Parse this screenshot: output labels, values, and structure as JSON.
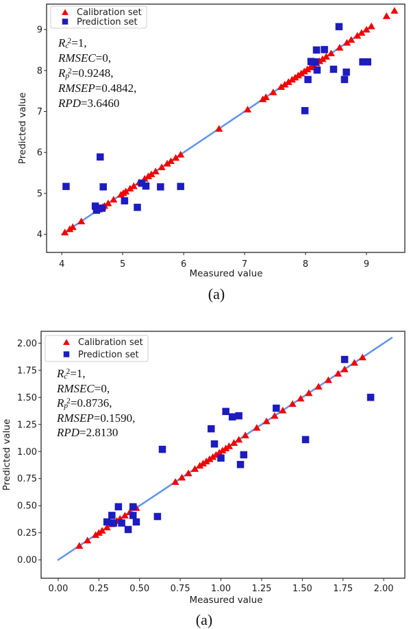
{
  "colors": {
    "calibration": "#f40000",
    "prediction": "#1c1cc0",
    "identity_line": "#6495ED",
    "axis": "#262626",
    "text": "#1a1a1a",
    "legend_border": "#cccccc"
  },
  "figures": [
    {
      "caption": "(a)",
      "legend": {
        "items": [
          {
            "label": "Calibration set",
            "marker": "triangle"
          },
          {
            "label": "Prediction set",
            "marker": "square"
          }
        ]
      },
      "annotation": {
        "lines": [
          [
            {
              "t": "R",
              "s": "v"
            },
            {
              "t": "c",
              "s": "b"
            },
            {
              "t": "2",
              "s": "p"
            },
            {
              "t": "=1,",
              "s": "n"
            }
          ],
          [
            {
              "t": "RMSEC",
              "s": "v"
            },
            {
              "t": "=0,",
              "s": "n"
            }
          ],
          [
            {
              "t": "R",
              "s": "v"
            },
            {
              "t": "p",
              "s": "b"
            },
            {
              "t": "2",
              "s": "p"
            },
            {
              "t": "=0.9248,",
              "s": "n"
            }
          ],
          [
            {
              "t": "RMSEP",
              "s": "v"
            },
            {
              "t": "=0.4842,",
              "s": "n"
            }
          ],
          [
            {
              "t": "RPD",
              "s": "v"
            },
            {
              "t": "=3.6460",
              "s": "n"
            }
          ]
        ]
      }
    },
    {
      "caption": "(a)",
      "legend": {
        "items": [
          {
            "label": "Calibration set",
            "marker": "triangle"
          },
          {
            "label": "Prediction set",
            "marker": "square"
          }
        ]
      },
      "annotation": {
        "lines": [
          [
            {
              "t": "R",
              "s": "v"
            },
            {
              "t": "c",
              "s": "b"
            },
            {
              "t": "2",
              "s": "p"
            },
            {
              "t": "=1,",
              "s": "n"
            }
          ],
          [
            {
              "t": "RMSEC",
              "s": "v"
            },
            {
              "t": "=0,",
              "s": "n"
            }
          ],
          [
            {
              "t": "R",
              "s": "v"
            },
            {
              "t": "p",
              "s": "b"
            },
            {
              "t": "2",
              "s": "p"
            },
            {
              "t": "=0.8736,",
              "s": "n"
            }
          ],
          [
            {
              "t": "RMSEP",
              "s": "v"
            },
            {
              "t": "=0.1590,",
              "s": "n"
            }
          ],
          [
            {
              "t": "RPD",
              "s": "v"
            },
            {
              "t": "=2.8130",
              "s": "n"
            }
          ]
        ]
      }
    }
  ],
  "chart_data": [
    {
      "type": "scatter",
      "xlabel": "Measured value",
      "ylabel": "Predicted value",
      "xlim": [
        3.75,
        9.63
      ],
      "ylim": [
        3.56,
        9.62
      ],
      "xticks": [
        4,
        5,
        6,
        7,
        8,
        9
      ],
      "yticks": [
        4,
        5,
        6,
        7,
        8,
        9
      ],
      "xtick_labels": [
        "4",
        "5",
        "6",
        "7",
        "8",
        "9"
      ],
      "ytick_labels": [
        "4",
        "5",
        "6",
        "7",
        "8",
        "9"
      ],
      "grid": false,
      "legend_position": "upper left",
      "annotation_text": [
        "Rc2=1,",
        "RMSEC=0,",
        "Rp2=0.9248,",
        "RMSEP=0.4842,",
        "RPD=3.6460"
      ],
      "identity_line": {
        "x1": 4.01,
        "y1": 4.01,
        "x2": 9.1,
        "y2": 9.1
      },
      "series": [
        {
          "name": "Calibration set",
          "marker": "triangle",
          "points": [
            [
              4.05,
              4.05
            ],
            [
              4.13,
              4.13
            ],
            [
              4.18,
              4.18
            ],
            [
              4.32,
              4.32
            ],
            [
              4.61,
              4.61
            ],
            [
              4.67,
              4.67
            ],
            [
              4.7,
              4.7
            ],
            [
              4.76,
              4.76
            ],
            [
              4.85,
              4.85
            ],
            [
              4.97,
              4.97
            ],
            [
              5.01,
              5.01
            ],
            [
              5.05,
              5.05
            ],
            [
              5.12,
              5.12
            ],
            [
              5.18,
              5.18
            ],
            [
              5.27,
              5.27
            ],
            [
              5.36,
              5.36
            ],
            [
              5.42,
              5.42
            ],
            [
              5.47,
              5.47
            ],
            [
              5.54,
              5.54
            ],
            [
              5.64,
              5.64
            ],
            [
              5.73,
              5.73
            ],
            [
              5.79,
              5.79
            ],
            [
              5.87,
              5.87
            ],
            [
              5.95,
              5.95
            ],
            [
              6.58,
              6.58
            ],
            [
              7.05,
              7.05
            ],
            [
              7.3,
              7.3
            ],
            [
              7.35,
              7.35
            ],
            [
              7.47,
              7.47
            ],
            [
              7.6,
              7.6
            ],
            [
              7.66,
              7.66
            ],
            [
              7.72,
              7.72
            ],
            [
              7.78,
              7.78
            ],
            [
              7.83,
              7.83
            ],
            [
              7.88,
              7.88
            ],
            [
              7.93,
              7.93
            ],
            [
              7.98,
              7.98
            ],
            [
              8.03,
              8.03
            ],
            [
              8.08,
              8.08
            ],
            [
              8.13,
              8.13
            ],
            [
              8.18,
              8.18
            ],
            [
              8.23,
              8.23
            ],
            [
              8.28,
              8.28
            ],
            [
              8.34,
              8.34
            ],
            [
              8.42,
              8.42
            ],
            [
              8.56,
              8.56
            ],
            [
              8.68,
              8.68
            ],
            [
              8.75,
              8.75
            ],
            [
              8.85,
              8.85
            ],
            [
              8.92,
              8.92
            ],
            [
              9.0,
              9.0
            ],
            [
              9.08,
              9.08
            ],
            [
              9.33,
              9.33
            ],
            [
              9.46,
              9.46
            ]
          ]
        },
        {
          "name": "Prediction set",
          "marker": "square",
          "points": [
            [
              4.07,
              5.17
            ],
            [
              4.55,
              4.69
            ],
            [
              4.57,
              4.59
            ],
            [
              4.63,
              5.89
            ],
            [
              4.66,
              4.64
            ],
            [
              4.68,
              5.16
            ],
            [
              5.03,
              4.82
            ],
            [
              5.24,
              4.66
            ],
            [
              5.31,
              5.25
            ],
            [
              5.38,
              5.18
            ],
            [
              5.62,
              5.16
            ],
            [
              5.95,
              5.17
            ],
            [
              7.99,
              7.02
            ],
            [
              8.04,
              7.78
            ],
            [
              8.09,
              8.22
            ],
            [
              8.16,
              8.21
            ],
            [
              8.18,
              8.5
            ],
            [
              8.19,
              8.01
            ],
            [
              8.31,
              8.51
            ],
            [
              8.46,
              8.03
            ],
            [
              8.55,
              9.07
            ],
            [
              8.64,
              7.78
            ],
            [
              8.67,
              7.96
            ],
            [
              8.94,
              8.21
            ],
            [
              9.02,
              8.21
            ]
          ]
        }
      ]
    },
    {
      "type": "scatter",
      "xlabel": "Measured value",
      "ylabel": "Predicted value",
      "xlim": [
        -0.105,
        2.13
      ],
      "ylim": [
        -0.17,
        2.11
      ],
      "xticks": [
        0,
        0.25,
        0.5,
        0.75,
        1,
        1.25,
        1.5,
        1.75,
        2
      ],
      "yticks": [
        0,
        0.25,
        0.5,
        0.75,
        1,
        1.25,
        1.5,
        1.75,
        2
      ],
      "xtick_labels": [
        "0.00",
        "0.25",
        "0.50",
        "0.75",
        "1.00",
        "1.25",
        "1.50",
        "1.75",
        "2.00"
      ],
      "ytick_labels": [
        "0.00",
        "0.25",
        "0.50",
        "0.75",
        "1.00",
        "1.25",
        "1.50",
        "1.75",
        "2.00"
      ],
      "grid": false,
      "legend_position": "upper left",
      "annotation_text": [
        "Rc2=1,",
        "RMSEC=0,",
        "Rp2=0.8736,",
        "RMSEP=0.1590,",
        "RPD=2.8130"
      ],
      "identity_line": {
        "x1": 0.0,
        "y1": 0.0,
        "x2": 2.05,
        "y2": 2.05
      },
      "series": [
        {
          "name": "Calibration set",
          "marker": "triangle",
          "points": [
            [
              0.13,
              0.13
            ],
            [
              0.18,
              0.18
            ],
            [
              0.23,
              0.23
            ],
            [
              0.25,
              0.25
            ],
            [
              0.27,
              0.27
            ],
            [
              0.3,
              0.3
            ],
            [
              0.33,
              0.33
            ],
            [
              0.36,
              0.36
            ],
            [
              0.38,
              0.38
            ],
            [
              0.41,
              0.41
            ],
            [
              0.44,
              0.44
            ],
            [
              0.48,
              0.48
            ],
            [
              0.72,
              0.72
            ],
            [
              0.76,
              0.76
            ],
            [
              0.8,
              0.8
            ],
            [
              0.84,
              0.84
            ],
            [
              0.87,
              0.87
            ],
            [
              0.89,
              0.89
            ],
            [
              0.91,
              0.91
            ],
            [
              0.93,
              0.93
            ],
            [
              0.95,
              0.95
            ],
            [
              0.97,
              0.97
            ],
            [
              0.99,
              0.99
            ],
            [
              1.01,
              1.01
            ],
            [
              1.03,
              1.03
            ],
            [
              1.05,
              1.05
            ],
            [
              1.08,
              1.08
            ],
            [
              1.11,
              1.11
            ],
            [
              1.15,
              1.15
            ],
            [
              1.22,
              1.22
            ],
            [
              1.28,
              1.28
            ],
            [
              1.33,
              1.33
            ],
            [
              1.38,
              1.38
            ],
            [
              1.44,
              1.44
            ],
            [
              1.49,
              1.49
            ],
            [
              1.54,
              1.54
            ],
            [
              1.6,
              1.6
            ],
            [
              1.66,
              1.66
            ],
            [
              1.72,
              1.72
            ],
            [
              1.76,
              1.76
            ],
            [
              1.82,
              1.82
            ],
            [
              1.87,
              1.87
            ]
          ]
        },
        {
          "name": "Prediction set",
          "marker": "square",
          "points": [
            [
              0.3,
              0.35
            ],
            [
              0.33,
              0.41
            ],
            [
              0.34,
              0.34
            ],
            [
              0.37,
              0.49
            ],
            [
              0.39,
              0.34
            ],
            [
              0.43,
              0.28
            ],
            [
              0.46,
              0.49
            ],
            [
              0.46,
              0.41
            ],
            [
              0.48,
              0.35
            ],
            [
              0.61,
              0.4
            ],
            [
              0.64,
              1.02
            ],
            [
              0.94,
              1.21
            ],
            [
              0.96,
              1.07
            ],
            [
              1.0,
              0.94
            ],
            [
              1.03,
              1.37
            ],
            [
              1.07,
              1.32
            ],
            [
              1.11,
              1.33
            ],
            [
              1.12,
              0.88
            ],
            [
              1.14,
              0.97
            ],
            [
              1.34,
              1.4
            ],
            [
              1.52,
              1.11
            ],
            [
              1.76,
              1.85
            ],
            [
              1.92,
              1.5
            ]
          ]
        }
      ]
    }
  ]
}
